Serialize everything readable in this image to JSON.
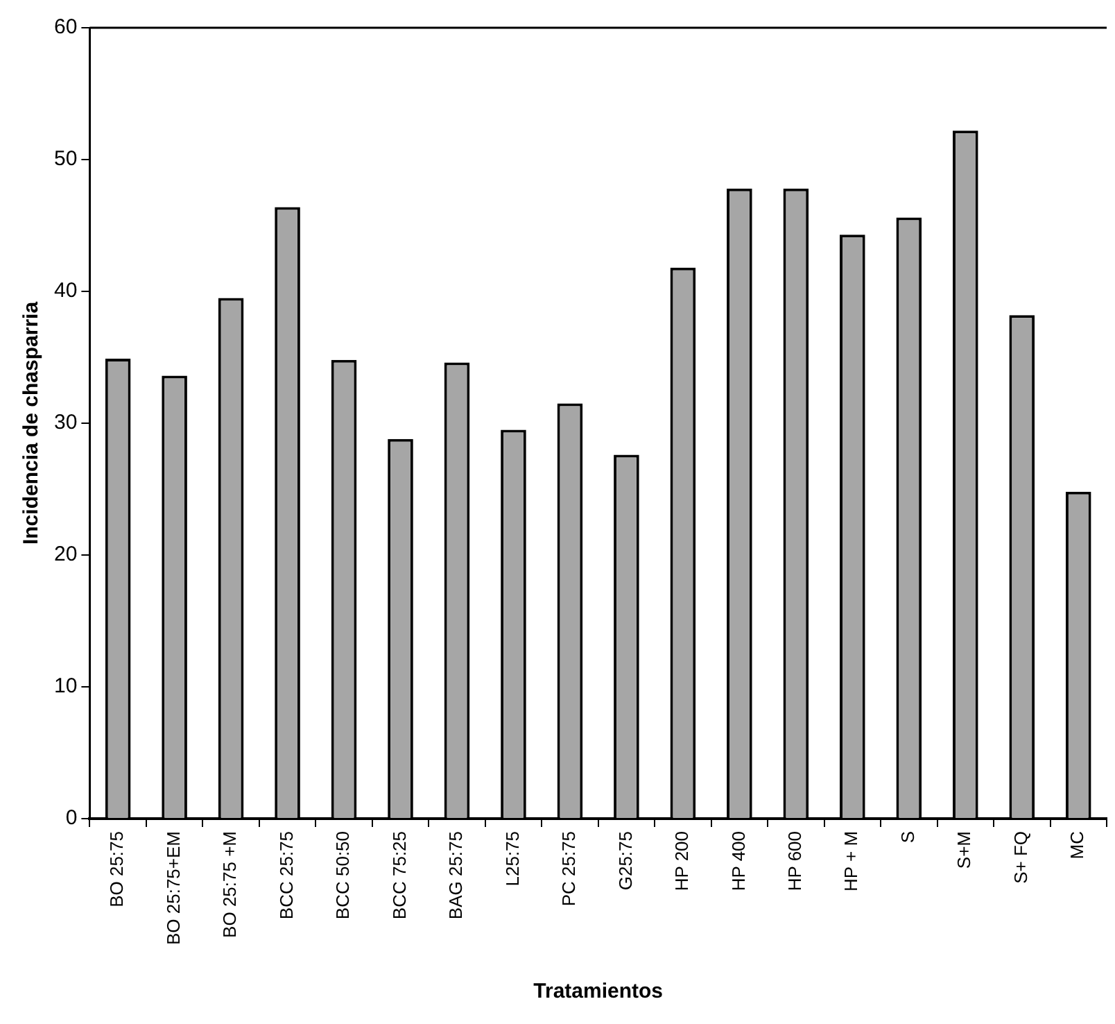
{
  "chart_data": {
    "type": "bar",
    "xlabel": "Tratamientos",
    "ylabel": "Incidencia de chasparria",
    "categories": [
      "BO 25:75",
      "BO 25:75+EM",
      "BO 25:75 +M",
      "BCC 25:75",
      "BCC 50:50",
      "BCC 75:25",
      "BAG 25:75",
      "L25:75",
      "PC 25:75",
      "G25:75",
      "HP 200",
      "HP 400",
      "HP 600",
      "HP + M",
      "S",
      "S+M",
      "S+ FQ",
      "MC"
    ],
    "values": [
      34.9,
      33.6,
      39.5,
      46.4,
      34.8,
      28.8,
      34.6,
      29.5,
      31.5,
      27.6,
      41.8,
      47.8,
      47.8,
      44.3,
      45.6,
      52.2,
      38.2,
      24.8
    ],
    "color": "#a6a6a6",
    "ylim": [
      0,
      60
    ],
    "yticks": [
      0,
      10,
      20,
      30,
      40,
      50,
      60
    ],
    "grid": false,
    "legend": false
  }
}
